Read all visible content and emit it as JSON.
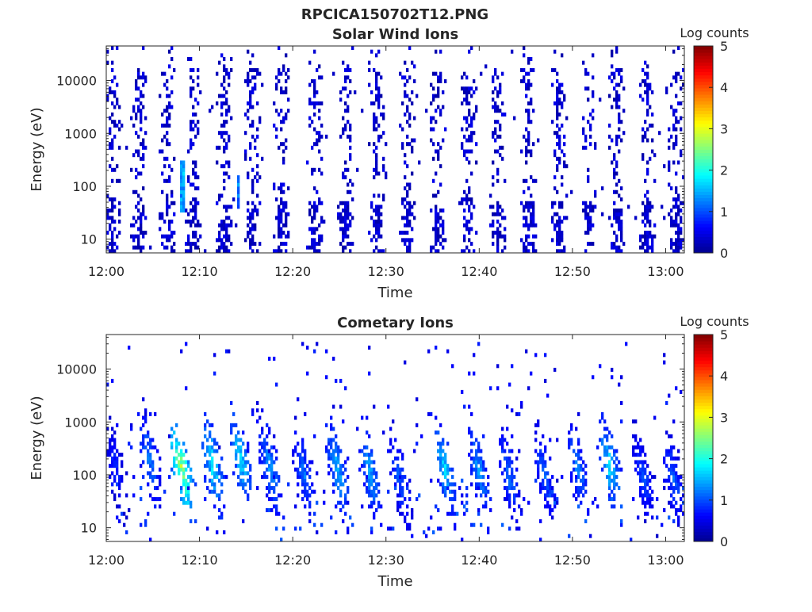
{
  "figure": {
    "title": "RPCICA150702T12.PNG"
  },
  "colormap": [
    "#00008f",
    "#0000ff",
    "#0080ff",
    "#00ffff",
    "#80ff80",
    "#ffff00",
    "#ff8000",
    "#ff0000",
    "#800000"
  ],
  "chart_data": [
    {
      "type": "heatmap",
      "title": "Solar Wind Ions",
      "xlabel": "Time",
      "ylabel": "Energy (eV)",
      "x_ticks": [
        "12:00",
        "12:10",
        "12:20",
        "12:30",
        "12:40",
        "12:50",
        "13:00"
      ],
      "x_tick_minutes": [
        0,
        10,
        20,
        30,
        40,
        50,
        60
      ],
      "xlim_minutes": [
        0,
        62
      ],
      "y_scale": "log",
      "ylim": [
        5.5,
        45000
      ],
      "y_ticks": [
        10,
        100,
        1000,
        10000
      ],
      "y_tick_labels": [
        "10",
        "100",
        "1000",
        "10000"
      ],
      "colorbar": {
        "label": "Log counts",
        "range": [
          0,
          5
        ],
        "ticks": [
          "0",
          "1",
          "2",
          "3",
          "4",
          "5"
        ]
      },
      "sweep_centers_minutes": [
        0.6,
        3.5,
        6.6,
        9.4,
        12.7,
        15.6,
        18.8,
        22.3,
        25.7,
        29.0,
        32.3,
        35.5,
        38.8,
        42.0,
        45.2,
        48.5,
        51.7,
        54.8,
        58.0,
        61.1
      ],
      "streaks": [
        {
          "t_minutes": 8.1,
          "e_min": 30,
          "e_max": 300,
          "log_counts": 1.8
        },
        {
          "t_minutes": 14.2,
          "e_min": 40,
          "e_max": 150,
          "log_counts": 1.5
        }
      ],
      "typical_log_counts": 0.3
    },
    {
      "type": "heatmap",
      "title": "Cometary Ions",
      "xlabel": "Time",
      "ylabel": "Energy (eV)",
      "x_ticks": [
        "12:00",
        "12:10",
        "12:20",
        "12:30",
        "12:40",
        "12:50",
        "13:00"
      ],
      "x_tick_minutes": [
        0,
        10,
        20,
        30,
        40,
        50,
        60
      ],
      "xlim_minutes": [
        0,
        62
      ],
      "y_scale": "log",
      "ylim": [
        5.5,
        45000
      ],
      "y_ticks": [
        10,
        100,
        1000,
        10000
      ],
      "y_tick_labels": [
        "10",
        "100",
        "1000",
        "10000"
      ],
      "colorbar": {
        "label": "Log counts",
        "range": [
          0,
          5
        ],
        "ticks": [
          "0",
          "1",
          "2",
          "3",
          "4",
          "5"
        ]
      },
      "bursts": [
        {
          "t_minutes": 1.0,
          "e_peak": 40,
          "log_counts": 0.9
        },
        {
          "t_minutes": 4.5,
          "e_peak": 60,
          "log_counts": 1.4
        },
        {
          "t_minutes": 8.1,
          "e_peak": 35,
          "log_counts": 2.9
        },
        {
          "t_minutes": 11.4,
          "e_peak": 45,
          "log_counts": 2.0
        },
        {
          "t_minutes": 14.4,
          "e_peak": 60,
          "log_counts": 1.9
        },
        {
          "t_minutes": 17.6,
          "e_peak": 40,
          "log_counts": 1.5
        },
        {
          "t_minutes": 21.2,
          "e_peak": 30,
          "log_counts": 1.3
        },
        {
          "t_minutes": 24.8,
          "e_peak": 35,
          "log_counts": 1.7
        },
        {
          "t_minutes": 28.3,
          "e_peak": 30,
          "log_counts": 1.6
        },
        {
          "t_minutes": 31.5,
          "e_peak": 25,
          "log_counts": 1.2
        },
        {
          "t_minutes": 36.3,
          "e_peak": 40,
          "log_counts": 1.8
        },
        {
          "t_minutes": 40.0,
          "e_peak": 35,
          "log_counts": 1.5
        },
        {
          "t_minutes": 43.2,
          "e_peak": 30,
          "log_counts": 1.3
        },
        {
          "t_minutes": 47.0,
          "e_peak": 30,
          "log_counts": 1.2
        },
        {
          "t_minutes": 50.6,
          "e_peak": 35,
          "log_counts": 1.4
        },
        {
          "t_minutes": 54.0,
          "e_peak": 40,
          "log_counts": 1.9
        },
        {
          "t_minutes": 57.6,
          "e_peak": 25,
          "log_counts": 1.1
        },
        {
          "t_minutes": 60.8,
          "e_peak": 25,
          "log_counts": 1.2
        }
      ],
      "typical_log_counts": 0.6
    }
  ]
}
